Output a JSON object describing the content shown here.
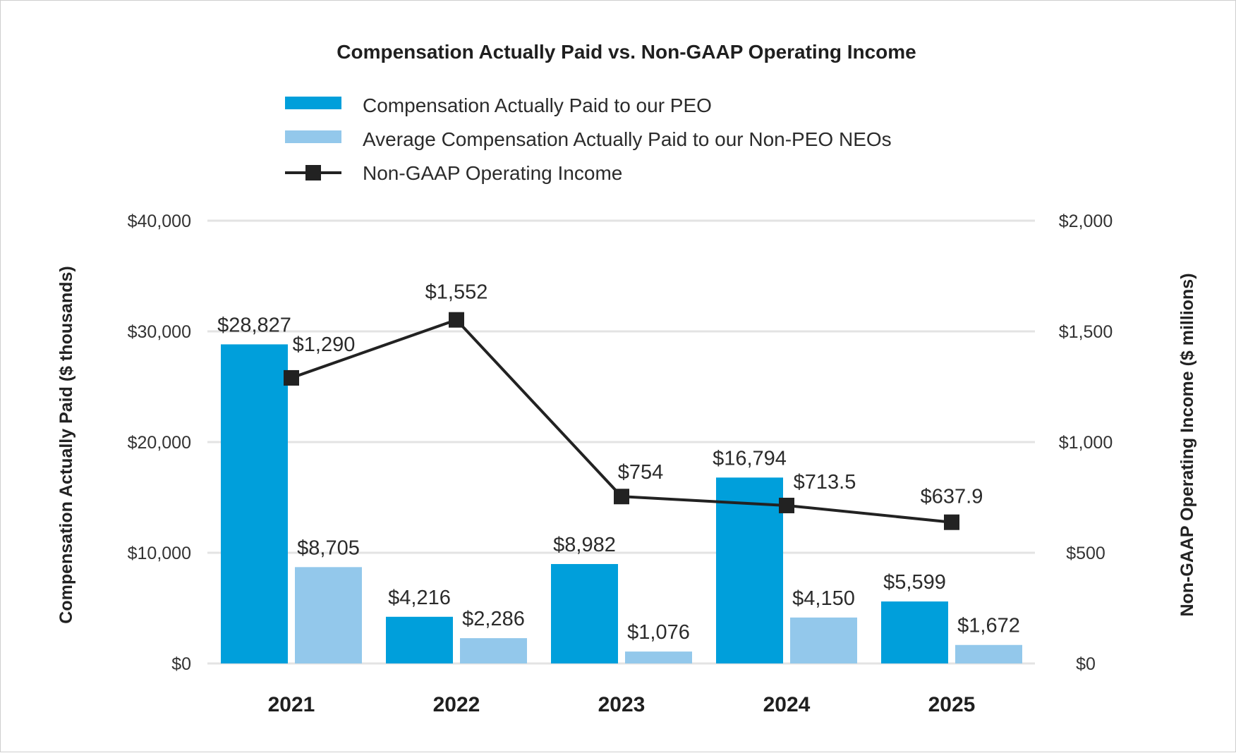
{
  "chart_data": {
    "type": "bar",
    "title": "Compensation Actually Paid vs. Non-GAAP Operating Income",
    "categories": [
      "2021",
      "2022",
      "2023",
      "2024",
      "2025"
    ],
    "ylabel": "Compensation Actually Paid ($ thousands)",
    "ylabel_right": "Non-GAAP Operating Income ($ millions)",
    "ylim": [
      0,
      40000
    ],
    "ylim_right": [
      0,
      2000
    ],
    "yticks": [
      0,
      10000,
      20000,
      30000,
      40000
    ],
    "ytick_labels": [
      "$0",
      "$10,000",
      "$20,000",
      "$30,000",
      "$40,000"
    ],
    "yticks_right": [
      0,
      500,
      1000,
      1500,
      2000
    ],
    "ytick_labels_right": [
      "$0",
      "$500",
      "$1,000",
      "$1,500",
      "$2,000"
    ],
    "grid": true,
    "legend_position": "top",
    "series": [
      {
        "name": "Compensation Actually Paid to our PEO",
        "kind": "bar",
        "axis": "left",
        "color": "#009FDB",
        "values": [
          28827,
          4216,
          8982,
          16794,
          5599
        ],
        "labels": [
          "$28,827",
          "$4,216",
          "$8,982",
          "$16,794",
          "$5,599"
        ]
      },
      {
        "name": "Average Compensation Actually Paid to our Non-PEO NEOs",
        "kind": "bar",
        "axis": "left",
        "color": "#93C8EB",
        "values": [
          8705,
          2286,
          1076,
          4150,
          1672
        ],
        "labels": [
          "$8,705",
          "$2,286",
          "$1,076",
          "$4,150",
          "$1,672"
        ]
      },
      {
        "name": "Non-GAAP Operating Income",
        "kind": "line",
        "axis": "right",
        "color": "#222222",
        "marker": "square",
        "values": [
          1290,
          1552,
          754,
          713.5,
          637.9
        ],
        "labels": [
          "$1,290",
          "$1,552",
          "$754",
          "$713.5",
          "$637.9"
        ]
      }
    ]
  }
}
